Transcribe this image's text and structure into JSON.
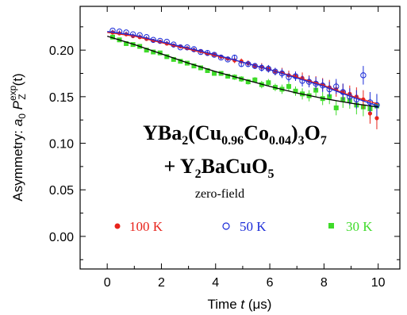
{
  "chart_data": {
    "type": "scatter",
    "xlabel": "Time t (μs)",
    "xlabel_parts": {
      "prefix": "Time ",
      "var": "t",
      "suffix": " (μs)"
    },
    "ylabel": "Asymmetry: a0 PZexp(t)",
    "ylabel_parts": {
      "prefix": "Asymmetry: ",
      "a": "a",
      "a_sub": "0",
      "p": "P",
      "p_sub": "Z",
      "p_sup": "exp",
      "arg": "(t)"
    },
    "xlim": [
      -1,
      10.8
    ],
    "ylim": [
      -0.035,
      0.247
    ],
    "xticks": [
      0,
      2,
      4,
      6,
      8,
      10
    ],
    "xtick_labels": [
      "0",
      "2",
      "4",
      "6",
      "8",
      "10"
    ],
    "yticks": [
      0.0,
      0.05,
      0.1,
      0.15,
      0.2
    ],
    "ytick_labels": [
      "0.00",
      "0.05",
      "0.10",
      "0.15",
      "0.20"
    ],
    "annotation": {
      "formula_line1": "YBa2(Cu0.96Co0.04)3O7",
      "formula_line1_parts": [
        "YBa",
        "2",
        "(Cu",
        "0.96",
        "Co",
        "0.04",
        ")",
        "3",
        "O",
        "7"
      ],
      "formula_line2": "+ Y2BaCuO5",
      "formula_line2_parts": [
        "+ Y",
        "2",
        "BaCuO",
        "5"
      ],
      "condition": "zero-field"
    },
    "series": [
      {
        "name": "100 K",
        "color": "#e8231b",
        "marker": "filled-circle",
        "x": [
          0.2,
          0.45,
          0.7,
          0.95,
          1.2,
          1.45,
          1.7,
          1.95,
          2.2,
          2.45,
          2.7,
          2.95,
          3.2,
          3.45,
          3.7,
          3.95,
          4.2,
          4.45,
          4.7,
          4.95,
          5.2,
          5.45,
          5.7,
          5.95,
          6.2,
          6.45,
          6.7,
          6.95,
          7.2,
          7.45,
          7.7,
          7.95,
          8.2,
          8.45,
          8.7,
          8.95,
          9.2,
          9.45,
          9.7,
          9.95
        ],
        "y": [
          0.219,
          0.218,
          0.217,
          0.215,
          0.214,
          0.212,
          0.21,
          0.209,
          0.207,
          0.205,
          0.204,
          0.202,
          0.2,
          0.199,
          0.196,
          0.195,
          0.193,
          0.191,
          0.189,
          0.188,
          0.186,
          0.183,
          0.182,
          0.18,
          0.177,
          0.176,
          0.173,
          0.172,
          0.17,
          0.167,
          0.165,
          0.163,
          0.16,
          0.158,
          0.155,
          0.153,
          0.15,
          0.147,
          0.132,
          0.127
        ],
        "err": [
          0.001,
          0.001,
          0.001,
          0.001,
          0.001,
          0.001,
          0.001,
          0.001,
          0.001,
          0.001,
          0.001,
          0.001,
          0.002,
          0.002,
          0.002,
          0.002,
          0.002,
          0.002,
          0.003,
          0.003,
          0.003,
          0.003,
          0.004,
          0.004,
          0.004,
          0.005,
          0.005,
          0.005,
          0.006,
          0.006,
          0.007,
          0.007,
          0.008,
          0.008,
          0.009,
          0.009,
          0.01,
          0.01,
          0.011,
          0.012
        ]
      },
      {
        "name": "50 K",
        "color": "#1a2bd8",
        "marker": "open-circle",
        "x": [
          0.2,
          0.45,
          0.7,
          0.95,
          1.2,
          1.45,
          1.7,
          1.95,
          2.2,
          2.45,
          2.7,
          2.95,
          3.2,
          3.45,
          3.7,
          3.95,
          4.2,
          4.45,
          4.7,
          4.95,
          5.2,
          5.45,
          5.7,
          5.95,
          6.2,
          6.45,
          6.7,
          6.95,
          7.2,
          7.45,
          7.7,
          7.95,
          8.2,
          8.45,
          8.7,
          8.95,
          9.2,
          9.45,
          9.7,
          9.95
        ],
        "y": [
          0.221,
          0.22,
          0.219,
          0.217,
          0.216,
          0.214,
          0.211,
          0.21,
          0.209,
          0.206,
          0.203,
          0.203,
          0.201,
          0.198,
          0.197,
          0.195,
          0.192,
          0.19,
          0.192,
          0.185,
          0.185,
          0.183,
          0.181,
          0.18,
          0.177,
          0.175,
          0.171,
          0.172,
          0.167,
          0.166,
          0.164,
          0.162,
          0.158,
          0.161,
          0.155,
          0.15,
          0.147,
          0.173,
          0.144,
          0.141
        ],
        "err": [
          0.001,
          0.001,
          0.001,
          0.001,
          0.001,
          0.001,
          0.001,
          0.001,
          0.001,
          0.001,
          0.001,
          0.001,
          0.002,
          0.002,
          0.002,
          0.002,
          0.002,
          0.002,
          0.003,
          0.003,
          0.003,
          0.003,
          0.004,
          0.004,
          0.004,
          0.005,
          0.005,
          0.005,
          0.006,
          0.006,
          0.007,
          0.007,
          0.008,
          0.008,
          0.009,
          0.009,
          0.01,
          0.01,
          0.011,
          0.012
        ]
      },
      {
        "name": "30 K",
        "color": "#3fdb2a",
        "marker": "filled-square",
        "x": [
          0.2,
          0.45,
          0.7,
          0.95,
          1.2,
          1.45,
          1.7,
          1.95,
          2.2,
          2.45,
          2.7,
          2.95,
          3.2,
          3.45,
          3.7,
          3.95,
          4.2,
          4.45,
          4.7,
          4.95,
          5.2,
          5.45,
          5.7,
          5.95,
          6.2,
          6.45,
          6.7,
          6.95,
          7.2,
          7.45,
          7.7,
          7.95,
          8.2,
          8.45,
          8.7,
          8.95,
          9.2,
          9.45,
          9.7,
          9.95
        ],
        "y": [
          0.214,
          0.211,
          0.207,
          0.206,
          0.204,
          0.2,
          0.198,
          0.197,
          0.193,
          0.19,
          0.188,
          0.186,
          0.183,
          0.181,
          0.178,
          0.175,
          0.175,
          0.172,
          0.171,
          0.169,
          0.166,
          0.168,
          0.163,
          0.165,
          0.16,
          0.158,
          0.161,
          0.156,
          0.153,
          0.151,
          0.157,
          0.148,
          0.15,
          0.138,
          0.147,
          0.146,
          0.141,
          0.139,
          0.137,
          0.14
        ],
        "err": [
          0.001,
          0.001,
          0.001,
          0.001,
          0.001,
          0.001,
          0.001,
          0.001,
          0.001,
          0.001,
          0.001,
          0.001,
          0.002,
          0.002,
          0.002,
          0.002,
          0.002,
          0.002,
          0.003,
          0.003,
          0.003,
          0.003,
          0.004,
          0.004,
          0.004,
          0.005,
          0.005,
          0.005,
          0.006,
          0.006,
          0.007,
          0.007,
          0.008,
          0.008,
          0.009,
          0.009,
          0.01,
          0.01,
          0.011,
          0.012
        ]
      }
    ],
    "fits": [
      {
        "color": "#e8231b",
        "x": [
          0.0,
          1.0,
          2.0,
          3.0,
          4.0,
          5.0,
          6.0,
          7.0,
          8.0,
          9.0,
          10.0
        ],
        "y": [
          0.219,
          0.215,
          0.208,
          0.201,
          0.194,
          0.187,
          0.179,
          0.171,
          0.162,
          0.151,
          0.142
        ]
      },
      {
        "color": "#1a2bd8",
        "x": [
          0.0,
          1.0,
          2.0,
          3.0,
          4.0,
          5.0,
          6.0,
          7.0,
          8.0,
          9.0,
          10.0
        ],
        "y": [
          0.22,
          0.216,
          0.209,
          0.202,
          0.195,
          0.187,
          0.179,
          0.17,
          0.161,
          0.15,
          0.14
        ]
      },
      {
        "color": "#000000",
        "x": [
          0.0,
          1.0,
          2.0,
          3.0,
          4.0,
          5.0,
          6.0,
          7.0,
          8.0,
          9.0,
          10.0
        ],
        "y": [
          0.215,
          0.206,
          0.196,
          0.186,
          0.177,
          0.169,
          0.161,
          0.154,
          0.148,
          0.143,
          0.139
        ]
      }
    ],
    "grid": false,
    "legend": "inside-bottom"
  }
}
